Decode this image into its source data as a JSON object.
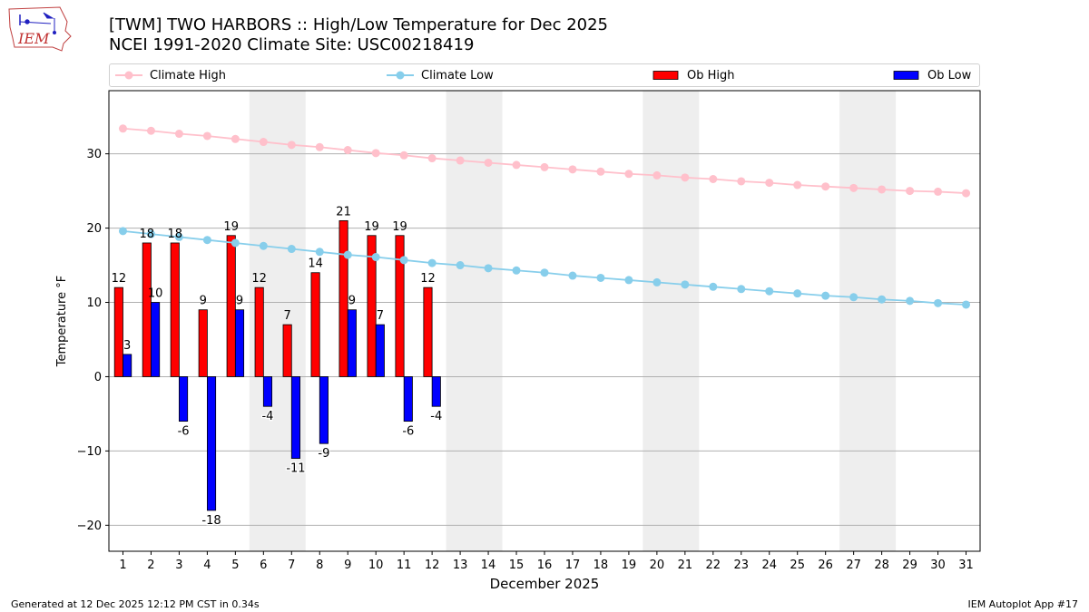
{
  "header": {
    "logo_text": "IEM",
    "title_line1": "[TWM] TWO HARBORS :: High/Low Temperature for Dec 2025",
    "title_line2": "NCEI 1991-2020 Climate Site: USC00218419"
  },
  "legend": {
    "climate_high": "Climate High",
    "climate_low": "Climate Low",
    "ob_high": "Ob High",
    "ob_low": "Ob Low"
  },
  "colors": {
    "climate_high": "#ffc0cb",
    "climate_low": "#87ceeb",
    "ob_high": "#ff0000",
    "ob_low": "#0000ff",
    "weekend_shade": "#eeeeee",
    "grid": "#b0b0b0"
  },
  "chart_data": {
    "type": "bar",
    "title": "[TWM] TWO HARBORS :: High/Low Temperature for Dec 2025",
    "xlabel": "December 2025",
    "ylabel": "Temperature °F",
    "ylim": [
      -23.5,
      38.5
    ],
    "yticks": [
      -20,
      -10,
      0,
      10,
      20,
      30
    ],
    "ytick_labels": [
      "−20",
      "−10",
      "0",
      "10",
      "20",
      "30"
    ],
    "days": [
      1,
      2,
      3,
      4,
      5,
      6,
      7,
      8,
      9,
      10,
      11,
      12,
      13,
      14,
      15,
      16,
      17,
      18,
      19,
      20,
      21,
      22,
      23,
      24,
      25,
      26,
      27,
      28,
      29,
      30,
      31
    ],
    "weekend_spans": [
      [
        6,
        7
      ],
      [
        13,
        14
      ],
      [
        20,
        21
      ],
      [
        27,
        28
      ]
    ],
    "series": [
      {
        "name": "Ob High",
        "kind": "bar",
        "values": [
          12,
          18,
          18,
          9,
          19,
          12,
          7,
          14,
          21,
          19,
          19,
          12
        ]
      },
      {
        "name": "Ob Low",
        "kind": "bar",
        "values": [
          3,
          10,
          -6,
          -18,
          9,
          -4,
          -11,
          -9,
          9,
          7,
          -6,
          -4
        ]
      },
      {
        "name": "Climate High",
        "kind": "line",
        "values": [
          33.4,
          33.1,
          32.7,
          32.4,
          32.0,
          31.6,
          31.2,
          30.9,
          30.5,
          30.1,
          29.8,
          29.4,
          29.1,
          28.8,
          28.5,
          28.2,
          27.9,
          27.6,
          27.3,
          27.1,
          26.8,
          26.6,
          26.3,
          26.1,
          25.8,
          25.6,
          25.4,
          25.2,
          25.0,
          24.9,
          24.7
        ]
      },
      {
        "name": "Climate Low",
        "kind": "line",
        "values": [
          19.6,
          19.2,
          18.8,
          18.4,
          18.0,
          17.6,
          17.2,
          16.8,
          16.4,
          16.1,
          15.7,
          15.3,
          15.0,
          14.6,
          14.3,
          14.0,
          13.6,
          13.3,
          13.0,
          12.7,
          12.4,
          12.1,
          11.8,
          11.5,
          11.2,
          10.9,
          10.7,
          10.4,
          10.2,
          9.9,
          9.7
        ]
      }
    ]
  },
  "footer": {
    "generated": "Generated at 12 Dec 2025 12:12 PM CST in 0.34s",
    "app": "IEM Autoplot App #17"
  }
}
